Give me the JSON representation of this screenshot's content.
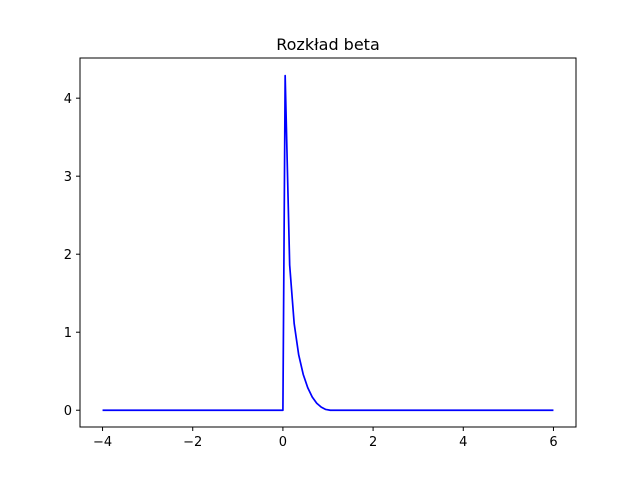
{
  "chart_data": {
    "type": "line",
    "title": "Rozkład beta",
    "xlabel": "",
    "ylabel": "",
    "xlim": [
      -4.5,
      6.5
    ],
    "ylim": [
      -0.215,
      4.515
    ],
    "xticks": [
      -4,
      -2,
      0,
      2,
      4,
      6
    ],
    "xtick_labels": [
      "−4",
      "−2",
      "0",
      "2",
      "4",
      "6"
    ],
    "yticks": [
      0,
      1,
      2,
      3,
      4
    ],
    "ytick_labels": [
      "0",
      "1",
      "2",
      "3",
      "4"
    ],
    "grid": false,
    "legend": "none",
    "series": [
      {
        "color": "#0000ff",
        "x": [
          -4,
          -0.05,
          0.0,
          0.05,
          0.15,
          0.25,
          0.35,
          0.45,
          0.55,
          0.65,
          0.75,
          0.85,
          0.95,
          1.05,
          2,
          4,
          6
        ],
        "y": [
          0,
          0,
          0,
          4.29,
          1.86,
          1.11,
          0.71,
          0.46,
          0.29,
          0.17,
          0.09,
          0.04,
          0.01,
          0,
          0,
          0,
          0
        ]
      }
    ]
  }
}
